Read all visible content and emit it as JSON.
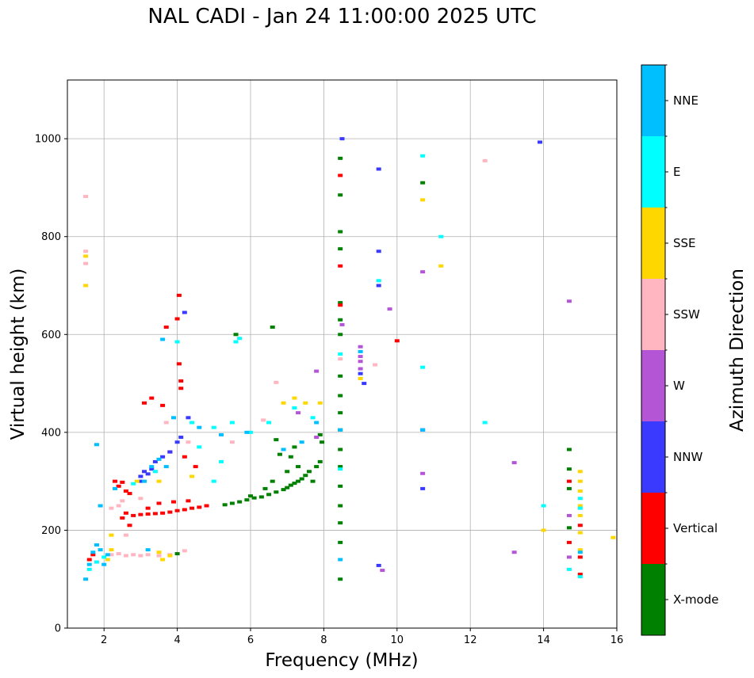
{
  "chart_data": {
    "type": "scatter",
    "title": "NAL CADI - Jan 24 11:00:00 2025 UTC",
    "xlabel": "Frequency (MHz)",
    "ylabel": "Virtual height (km)",
    "xlim": [
      1,
      16
    ],
    "ylim": [
      0,
      1120
    ],
    "xticks": [
      2,
      4,
      6,
      8,
      10,
      12,
      14,
      16
    ],
    "yticks": [
      0,
      200,
      400,
      600,
      800,
      1000
    ],
    "grid": true,
    "colorbar": {
      "label": "Azimuth Direction",
      "categories": [
        {
          "name": "X-mode",
          "color": "#008000"
        },
        {
          "name": "Vertical",
          "color": "#ff0000"
        },
        {
          "name": "NNW",
          "color": "#3a3aff"
        },
        {
          "name": "W",
          "color": "#b455d6"
        },
        {
          "name": "SSW",
          "color": "#ffb6c1"
        },
        {
          "name": "SSE",
          "color": "#ffd700"
        },
        {
          "name": "E",
          "color": "#00ffff"
        },
        {
          "name": "NNE",
          "color": "#00bfff"
        }
      ]
    },
    "series": [
      {
        "name": "X-mode",
        "points": [
          [
            5.3,
            252
          ],
          [
            5.5,
            255
          ],
          [
            5.7,
            258
          ],
          [
            5.9,
            262
          ],
          [
            6.1,
            266
          ],
          [
            6.3,
            268
          ],
          [
            6.5,
            273
          ],
          [
            6.7,
            278
          ],
          [
            6.9,
            283
          ],
          [
            7.0,
            287
          ],
          [
            7.1,
            292
          ],
          [
            7.2,
            296
          ],
          [
            7.3,
            300
          ],
          [
            7.4,
            305
          ],
          [
            7.5,
            312
          ],
          [
            7.6,
            320
          ],
          [
            7.7,
            300
          ],
          [
            7.8,
            330
          ],
          [
            7.9,
            340
          ],
          [
            7.95,
            380
          ],
          [
            7.9,
            395
          ],
          [
            7.3,
            330
          ],
          [
            7.1,
            350
          ],
          [
            7.2,
            370
          ],
          [
            6.8,
            355
          ],
          [
            6.7,
            385
          ],
          [
            7.0,
            320
          ],
          [
            6.6,
            300
          ],
          [
            6.4,
            285
          ],
          [
            6.0,
            270
          ],
          [
            8.45,
            100
          ],
          [
            8.45,
            175
          ],
          [
            8.45,
            215
          ],
          [
            8.45,
            250
          ],
          [
            8.45,
            290
          ],
          [
            8.45,
            330
          ],
          [
            8.45,
            365
          ],
          [
            8.45,
            405
          ],
          [
            8.45,
            440
          ],
          [
            8.45,
            475
          ],
          [
            8.45,
            515
          ],
          [
            8.45,
            600
          ],
          [
            8.45,
            630
          ],
          [
            8.45,
            665
          ],
          [
            8.45,
            775
          ],
          [
            8.45,
            810
          ],
          [
            8.45,
            885
          ],
          [
            8.45,
            960
          ],
          [
            10.7,
            910
          ],
          [
            14.7,
            365
          ],
          [
            14.7,
            325
          ],
          [
            14.7,
            285
          ],
          [
            14.7,
            205
          ],
          [
            4.0,
            152
          ],
          [
            6.6,
            615
          ],
          [
            5.6,
            600
          ]
        ]
      },
      {
        "name": "Vertical",
        "points": [
          [
            2.3,
            300
          ],
          [
            2.5,
            298
          ],
          [
            2.4,
            290
          ],
          [
            2.6,
            280
          ],
          [
            2.7,
            275
          ],
          [
            2.6,
            235
          ],
          [
            2.8,
            230
          ],
          [
            3.0,
            232
          ],
          [
            3.2,
            233
          ],
          [
            3.4,
            234
          ],
          [
            3.6,
            235
          ],
          [
            3.8,
            237
          ],
          [
            4.0,
            240
          ],
          [
            4.2,
            242
          ],
          [
            4.4,
            245
          ],
          [
            4.6,
            247
          ],
          [
            4.8,
            250
          ],
          [
            3.5,
            255
          ],
          [
            3.9,
            258
          ],
          [
            4.3,
            260
          ],
          [
            3.2,
            245
          ],
          [
            2.5,
            225
          ],
          [
            2.7,
            210
          ],
          [
            1.6,
            140
          ],
          [
            1.7,
            150
          ],
          [
            4.05,
            680
          ],
          [
            4.0,
            632
          ],
          [
            4.05,
            540
          ],
          [
            3.7,
            615
          ],
          [
            3.1,
            460
          ],
          [
            3.3,
            470
          ],
          [
            3.6,
            455
          ],
          [
            4.1,
            505
          ],
          [
            4.1,
            490
          ],
          [
            3.8,
            360
          ],
          [
            4.2,
            350
          ],
          [
            4.5,
            330
          ],
          [
            8.45,
            925
          ],
          [
            8.45,
            740
          ],
          [
            8.45,
            660
          ],
          [
            10.0,
            587
          ],
          [
            15.0,
            210
          ],
          [
            15.0,
            145
          ],
          [
            15.0,
            110
          ],
          [
            14.7,
            175
          ],
          [
            14.7,
            300
          ]
        ]
      },
      {
        "name": "NNW",
        "points": [
          [
            3.0,
            310
          ],
          [
            3.1,
            320
          ],
          [
            3.2,
            315
          ],
          [
            3.3,
            325
          ],
          [
            3.4,
            340
          ],
          [
            3.6,
            350
          ],
          [
            3.8,
            360
          ],
          [
            4.0,
            380
          ],
          [
            4.1,
            390
          ],
          [
            4.3,
            430
          ],
          [
            4.2,
            645
          ],
          [
            3.0,
            300
          ],
          [
            9.5,
            938
          ],
          [
            9.5,
            770
          ],
          [
            9.5,
            700
          ],
          [
            10.7,
            405
          ],
          [
            10.7,
            285
          ],
          [
            9.5,
            128
          ],
          [
            9.1,
            500
          ],
          [
            13.9,
            993
          ],
          [
            9.0,
            520
          ],
          [
            8.5,
            1000
          ]
        ]
      },
      {
        "name": "W",
        "points": [
          [
            9.0,
            575
          ],
          [
            9.0,
            555
          ],
          [
            9.0,
            545
          ],
          [
            9.0,
            530
          ],
          [
            9.8,
            652
          ],
          [
            10.7,
            728
          ],
          [
            10.7,
            316
          ],
          [
            14.7,
            668
          ],
          [
            14.7,
            230
          ],
          [
            14.7,
            145
          ],
          [
            13.2,
            155
          ],
          [
            13.2,
            338
          ],
          [
            8.5,
            620
          ],
          [
            7.8,
            525
          ],
          [
            7.8,
            390
          ],
          [
            7.3,
            440
          ],
          [
            9.6,
            118
          ]
        ]
      },
      {
        "name": "SSW",
        "points": [
          [
            2.2,
            150
          ],
          [
            2.4,
            152
          ],
          [
            2.6,
            148
          ],
          [
            2.8,
            150
          ],
          [
            3.0,
            148
          ],
          [
            3.2,
            150
          ],
          [
            3.5,
            148
          ],
          [
            3.8,
            150
          ],
          [
            4.2,
            158
          ],
          [
            2.6,
            190
          ],
          [
            2.2,
            245
          ],
          [
            2.4,
            250
          ],
          [
            2.5,
            260
          ],
          [
            3.0,
            265
          ],
          [
            1.5,
            882
          ],
          [
            1.5,
            770
          ],
          [
            1.5,
            745
          ],
          [
            6.35,
            425
          ],
          [
            6.7,
            502
          ],
          [
            9.4,
            538
          ],
          [
            12.4,
            955
          ],
          [
            8.45,
            550
          ],
          [
            5.5,
            380
          ],
          [
            4.3,
            380
          ],
          [
            3.7,
            420
          ]
        ]
      },
      {
        "name": "SSE",
        "points": [
          [
            1.5,
            700
          ],
          [
            1.5,
            760
          ],
          [
            2.1,
            140
          ],
          [
            2.2,
            160
          ],
          [
            3.5,
            155
          ],
          [
            3.8,
            148
          ],
          [
            3.6,
            140
          ],
          [
            7.2,
            470
          ],
          [
            7.5,
            460
          ],
          [
            6.9,
            460
          ],
          [
            7.9,
            460
          ],
          [
            10.7,
            875
          ],
          [
            11.2,
            740
          ],
          [
            14.0,
            200
          ],
          [
            15.9,
            185
          ],
          [
            15.0,
            320
          ],
          [
            15.0,
            300
          ],
          [
            15.0,
            280
          ],
          [
            15.0,
            250
          ],
          [
            15.0,
            230
          ],
          [
            15.0,
            195
          ],
          [
            15.0,
            160
          ],
          [
            9.0,
            510
          ],
          [
            4.4,
            310
          ],
          [
            3.5,
            300
          ],
          [
            2.9,
            300
          ],
          [
            2.2,
            190
          ]
        ]
      },
      {
        "name": "E",
        "points": [
          [
            1.6,
            120
          ],
          [
            1.8,
            135
          ],
          [
            2.0,
            145
          ],
          [
            5.6,
            585
          ],
          [
            5.7,
            592
          ],
          [
            4.0,
            585
          ],
          [
            4.4,
            420
          ],
          [
            5.0,
            410
          ],
          [
            5.5,
            420
          ],
          [
            6.0,
            400
          ],
          [
            6.5,
            420
          ],
          [
            7.2,
            450
          ],
          [
            7.7,
            430
          ],
          [
            8.45,
            325
          ],
          [
            8.45,
            560
          ],
          [
            10.7,
            965
          ],
          [
            10.7,
            533
          ],
          [
            11.2,
            800
          ],
          [
            12.4,
            420
          ],
          [
            14.0,
            250
          ],
          [
            14.7,
            120
          ],
          [
            15.0,
            265
          ],
          [
            15.0,
            245
          ],
          [
            15.0,
            105
          ],
          [
            9.5,
            710
          ],
          [
            4.6,
            370
          ],
          [
            5.2,
            340
          ],
          [
            5.0,
            300
          ],
          [
            3.4,
            320
          ],
          [
            2.8,
            295
          ]
        ]
      },
      {
        "name": "NNE",
        "points": [
          [
            1.5,
            100
          ],
          [
            1.6,
            130
          ],
          [
            1.7,
            155
          ],
          [
            1.8,
            170
          ],
          [
            1.9,
            160
          ],
          [
            2.0,
            130
          ],
          [
            2.1,
            150
          ],
          [
            1.9,
            250
          ],
          [
            1.8,
            375
          ],
          [
            3.1,
            300
          ],
          [
            3.3,
            330
          ],
          [
            3.5,
            345
          ],
          [
            3.9,
            430
          ],
          [
            3.6,
            590
          ],
          [
            4.6,
            410
          ],
          [
            5.2,
            395
          ],
          [
            5.9,
            400
          ],
          [
            6.9,
            365
          ],
          [
            7.4,
            380
          ],
          [
            7.8,
            420
          ],
          [
            8.45,
            140
          ],
          [
            8.45,
            405
          ],
          [
            9.0,
            565
          ],
          [
            10.7,
            405
          ],
          [
            15.0,
            155
          ],
          [
            3.2,
            160
          ],
          [
            2.3,
            285
          ],
          [
            3.7,
            330
          ]
        ]
      }
    ]
  }
}
